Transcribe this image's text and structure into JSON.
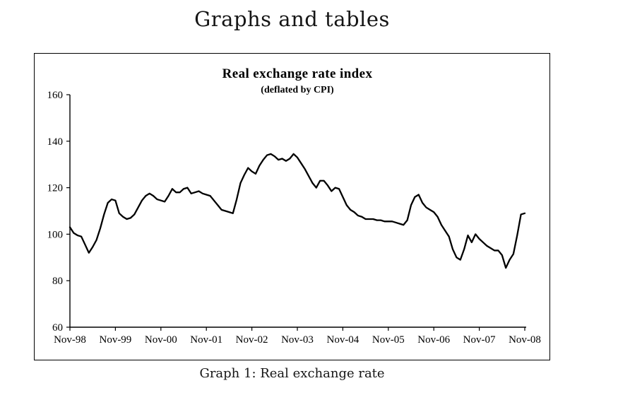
{
  "page": {
    "title": "Graphs and tables",
    "caption": "Graph 1: Real exchange rate"
  },
  "chart_data": {
    "type": "line",
    "title": "Real exchange rate index",
    "subtitle": "(deflated by CPI)",
    "xlabel": "",
    "ylabel": "",
    "ylim": [
      60,
      160
    ],
    "y_ticks": [
      60,
      80,
      100,
      120,
      140,
      160
    ],
    "x_tick_labels": [
      "Nov-98",
      "Nov-99",
      "Nov-00",
      "Nov-01",
      "Nov-02",
      "Nov-03",
      "Nov-04",
      "Nov-05",
      "Nov-06",
      "Nov-07",
      "Nov-08"
    ],
    "frequency": "monthly",
    "x_start": "Nov-98",
    "x_end": "Nov-08",
    "grid": false,
    "legend_position": "none",
    "line_color": "#000000",
    "axis_color": "#000000",
    "series": [
      {
        "name": "Real exchange rate index (deflated by CPI)",
        "values": [
          103,
          100.5,
          99.5,
          99,
          95.5,
          92,
          94.5,
          97.5,
          102.5,
          108.5,
          113.5,
          115,
          114.5,
          109,
          107.5,
          106.5,
          107,
          108.5,
          111.5,
          114.5,
          116.5,
          117.5,
          116.5,
          115,
          114.5,
          114,
          116.5,
          119.5,
          118,
          118,
          119.5,
          120,
          117.5,
          118,
          118.5,
          117.5,
          117,
          116.5,
          114.5,
          112.5,
          110.5,
          110,
          109.5,
          109,
          115,
          122,
          125.5,
          128.5,
          127,
          126,
          129.5,
          132,
          134,
          134.5,
          133.5,
          132,
          132.5,
          131.5,
          132.5,
          134.5,
          133,
          130.5,
          128,
          125,
          122,
          120,
          123,
          123,
          121,
          118.5,
          120,
          119.5,
          116,
          112.5,
          110.5,
          109.5,
          108,
          107.5,
          106.5,
          106.5,
          106.5,
          106,
          106,
          105.5,
          105.5,
          105.5,
          105,
          104.5,
          104,
          106,
          112.5,
          116,
          117,
          113.5,
          111.5,
          110.5,
          109.5,
          107.5,
          104,
          101.5,
          99,
          93.5,
          90,
          89,
          93.5,
          99.5,
          96.5,
          100,
          98,
          96.5,
          95,
          94,
          93,
          93,
          91,
          85.5,
          89,
          91.5,
          99.5,
          108.5,
          109
        ]
      }
    ]
  }
}
